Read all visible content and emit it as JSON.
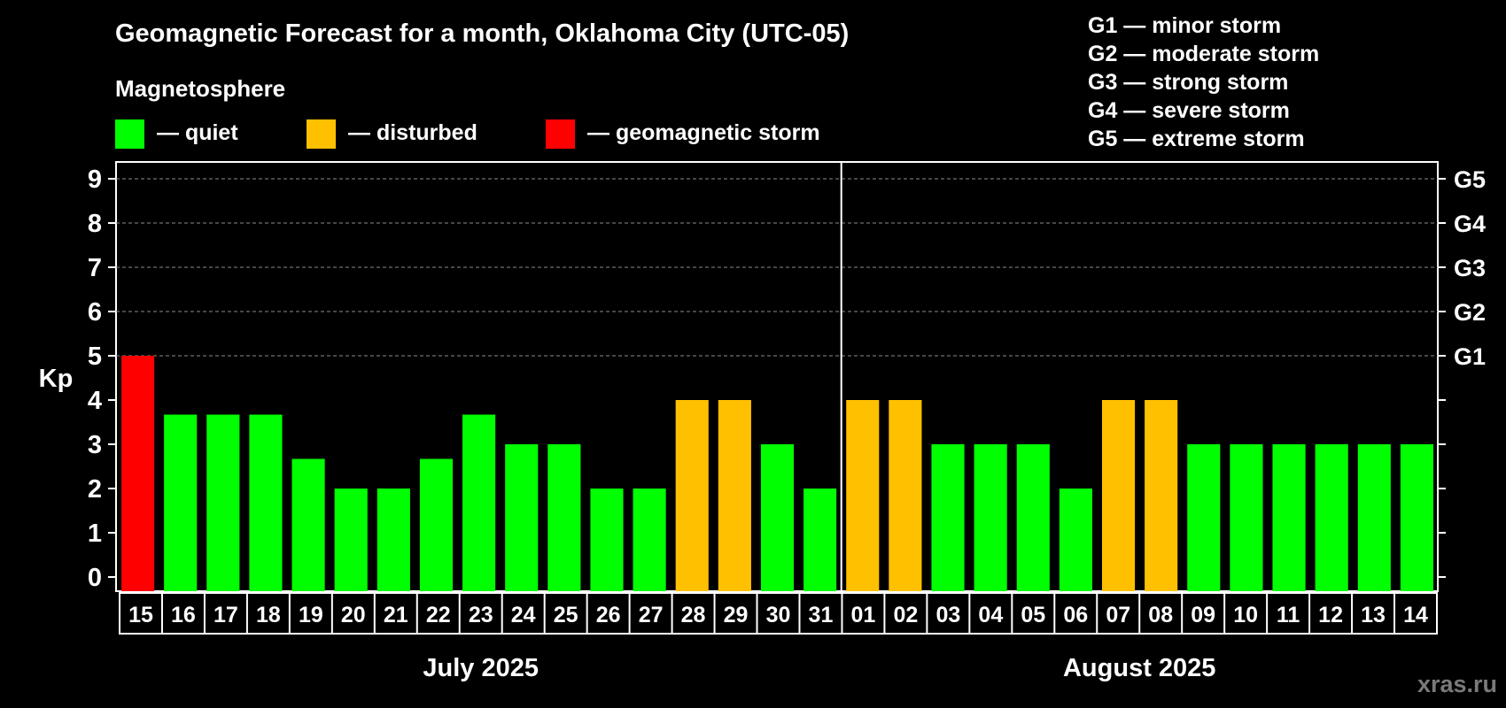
{
  "chart_data": {
    "type": "bar",
    "title": "Geomagnetic Forecast for a month, Oklahoma City (UTC-05)",
    "legend_title": "Magnetosphere",
    "legend": [
      {
        "label": "— quiet",
        "color": "#00ff00"
      },
      {
        "label": "— disturbed",
        "color": "#ffc000"
      },
      {
        "label": "— geomagnetic storm",
        "color": "#ff0000"
      }
    ],
    "storm_scale": [
      "G1 — minor storm",
      "G2 — moderate storm",
      "G3 — strong storm",
      "G4 — severe storm",
      "G5 — extreme storm"
    ],
    "ylabel": "Kp",
    "ylim": [
      0,
      9
    ],
    "yticks": [
      "0",
      "1",
      "2",
      "3",
      "4",
      "5",
      "6",
      "7",
      "8",
      "9"
    ],
    "right_axis_labels": [
      {
        "kp": 5,
        "label": "G1"
      },
      {
        "kp": 6,
        "label": "G2"
      },
      {
        "kp": 7,
        "label": "G3"
      },
      {
        "kp": 8,
        "label": "G4"
      },
      {
        "kp": 9,
        "label": "G5"
      }
    ],
    "categories": [
      "15",
      "16",
      "17",
      "18",
      "19",
      "20",
      "21",
      "22",
      "23",
      "24",
      "25",
      "26",
      "27",
      "28",
      "29",
      "30",
      "31",
      "01",
      "02",
      "03",
      "04",
      "05",
      "06",
      "07",
      "08",
      "09",
      "10",
      "11",
      "12",
      "13",
      "14"
    ],
    "values": [
      5,
      3.67,
      3.67,
      3.67,
      2.67,
      2,
      2,
      2.67,
      3.67,
      3,
      3,
      2,
      2,
      4,
      4,
      3,
      2,
      4,
      4,
      3,
      3,
      3,
      2,
      4,
      4,
      3,
      3,
      3,
      3,
      3,
      3
    ],
    "status": [
      "storm",
      "quiet",
      "quiet",
      "quiet",
      "quiet",
      "quiet",
      "quiet",
      "quiet",
      "quiet",
      "quiet",
      "quiet",
      "quiet",
      "quiet",
      "disturbed",
      "disturbed",
      "quiet",
      "quiet",
      "disturbed",
      "disturbed",
      "quiet",
      "quiet",
      "quiet",
      "quiet",
      "disturbed",
      "disturbed",
      "quiet",
      "quiet",
      "quiet",
      "quiet",
      "quiet",
      "quiet"
    ],
    "status_colors": {
      "quiet": "#00ff00",
      "disturbed": "#ffc000",
      "storm": "#ff0000"
    },
    "months": [
      {
        "label": "July 2025",
        "count": 17
      },
      {
        "label": "August 2025",
        "count": 14
      }
    ],
    "grid": true
  },
  "watermark": "xras.ru"
}
